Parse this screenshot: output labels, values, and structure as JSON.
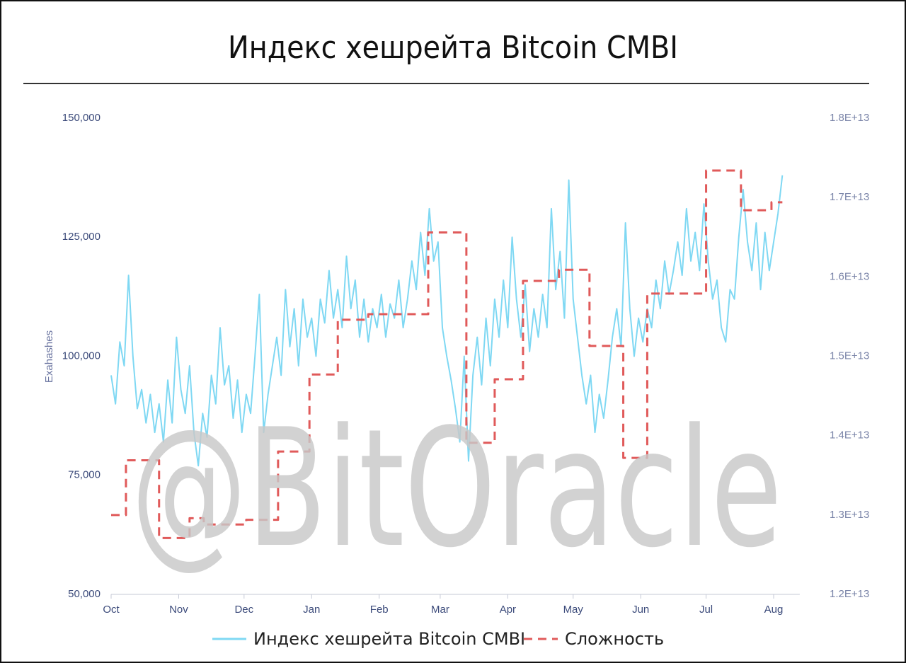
{
  "chart_data": {
    "type": "line",
    "title": "Индекс хешрейта Bitcoin CMBI",
    "ylabel": "Exahashes",
    "watermark": "@BitOracle",
    "xlim": [
      0,
      315
    ],
    "xticks": [
      {
        "value": 0,
        "label": "Oct"
      },
      {
        "value": 31,
        "label": "Nov"
      },
      {
        "value": 61,
        "label": "Dec"
      },
      {
        "value": 92,
        "label": "Jan"
      },
      {
        "value": 123,
        "label": "Feb"
      },
      {
        "value": 151,
        "label": "Mar"
      },
      {
        "value": 182,
        "label": "Apr"
      },
      {
        "value": 212,
        "label": "May"
      },
      {
        "value": 243,
        "label": "Jun"
      },
      {
        "value": 273,
        "label": "Jul"
      },
      {
        "value": 304,
        "label": "Aug"
      }
    ],
    "ylim": [
      50000,
      150000
    ],
    "yticks": [
      {
        "value": 50000,
        "label": "50,000"
      },
      {
        "value": 75000,
        "label": "75,000"
      },
      {
        "value": 100000,
        "label": "100,000"
      },
      {
        "value": 125000,
        "label": "125,000"
      },
      {
        "value": 150000,
        "label": "150,000"
      }
    ],
    "y2lim": [
      12000000000000,
      18000000000000
    ],
    "y2ticks": [
      {
        "value": 12000000000000,
        "label": "1.2E+13"
      },
      {
        "value": 13000000000000,
        "label": "1.3E+13"
      },
      {
        "value": 14000000000000,
        "label": "1.4E+13"
      },
      {
        "value": 15000000000000,
        "label": "1.5E+13"
      },
      {
        "value": 16000000000000,
        "label": "1.6E+13"
      },
      {
        "value": 17000000000000,
        "label": "1.7E+13"
      },
      {
        "value": 18000000000000,
        "label": "1.8E+13"
      }
    ],
    "grid": false,
    "legend": "bottom",
    "series": [
      {
        "name": "Индекс хешрейта Bitcoin CMBI",
        "color": "#7fd8f3",
        "dash": false,
        "x": [
          0,
          2,
          4,
          6,
          8,
          10,
          12,
          14,
          16,
          18,
          20,
          22,
          24,
          26,
          28,
          30,
          32,
          34,
          36,
          38,
          40,
          42,
          44,
          46,
          48,
          50,
          52,
          54,
          56,
          58,
          60,
          62,
          64,
          66,
          68,
          70,
          72,
          74,
          76,
          78,
          80,
          82,
          84,
          86,
          88,
          90,
          92,
          94,
          96,
          98,
          100,
          102,
          104,
          106,
          108,
          110,
          112,
          114,
          116,
          118,
          120,
          122,
          124,
          126,
          128,
          130,
          132,
          134,
          136,
          138,
          140,
          142,
          144,
          146,
          148,
          150,
          152,
          154,
          156,
          158,
          160,
          162,
          164,
          166,
          168,
          170,
          172,
          174,
          176,
          178,
          180,
          182,
          184,
          186,
          188,
          190,
          192,
          194,
          196,
          198,
          200,
          202,
          204,
          206,
          208,
          210,
          212,
          214,
          216,
          218,
          220,
          222,
          224,
          226,
          228,
          230,
          232,
          234,
          236,
          238,
          240,
          242,
          244,
          246,
          248,
          250,
          252,
          254,
          256,
          258,
          260,
          262,
          264,
          266,
          268,
          270,
          272,
          274,
          276,
          278,
          280,
          282,
          284,
          286,
          288,
          290,
          292,
          294,
          296,
          298,
          300,
          302,
          304,
          306,
          308
        ],
        "values": [
          96000,
          90000,
          103000,
          98000,
          117000,
          100000,
          89000,
          93000,
          86000,
          92000,
          84000,
          90000,
          82000,
          95000,
          86000,
          104000,
          93000,
          88000,
          98000,
          84000,
          77000,
          88000,
          83000,
          96000,
          90000,
          106000,
          94000,
          98000,
          87000,
          95000,
          84000,
          92000,
          88000,
          100000,
          113000,
          84000,
          92000,
          98000,
          104000,
          96000,
          114000,
          102000,
          110000,
          98000,
          112000,
          104000,
          108000,
          100000,
          112000,
          107000,
          118000,
          108000,
          114000,
          106000,
          121000,
          110000,
          116000,
          104000,
          112000,
          103000,
          110000,
          106000,
          113000,
          104000,
          111000,
          108000,
          116000,
          106000,
          112000,
          120000,
          114000,
          126000,
          117000,
          131000,
          120000,
          124000,
          106000,
          100000,
          95000,
          89000,
          82000,
          100000,
          78000,
          96000,
          104000,
          94000,
          108000,
          98000,
          112000,
          104000,
          116000,
          106000,
          125000,
          112000,
          104000,
          115000,
          101000,
          110000,
          104000,
          113000,
          106000,
          131000,
          114000,
          122000,
          108000,
          137000,
          112000,
          104000,
          96000,
          90000,
          96000,
          84000,
          92000,
          87000,
          95000,
          104000,
          110000,
          102000,
          128000,
          110000,
          100000,
          108000,
          103000,
          110000,
          106000,
          116000,
          110000,
          120000,
          113000,
          118000,
          124000,
          117000,
          131000,
          120000,
          126000,
          118000,
          132000,
          120000,
          112000,
          116000,
          106000,
          103000,
          114000,
          112000,
          125000,
          135000,
          124000,
          118000,
          128000,
          114000,
          126000,
          118000,
          124000,
          130000,
          138000
        ]
      },
      {
        "name": "Сложность",
        "color": "#e05a5a",
        "dash": true,
        "axis": "y2",
        "step": "post",
        "x": [
          0,
          6.8,
          22,
          36,
          42.5,
          62,
          76.6,
          91,
          104,
          118,
          145.5,
          163,
          176,
          189,
          205.5,
          219.5,
          235,
          246,
          273,
          289,
          303,
          308
        ],
        "values": [
          13000000000000,
          13690000000000,
          12710000000000,
          12960000000000,
          12880000000000,
          12940000000000,
          13800000000000,
          14770000000000,
          15460000000000,
          15530000000000,
          16560000000000,
          13910000000000,
          14710000000000,
          15950000000000,
          16090000000000,
          15130000000000,
          13720000000000,
          15790000000000,
          17340000000000,
          16840000000000,
          16940000000000,
          16940000000000
        ]
      }
    ]
  }
}
